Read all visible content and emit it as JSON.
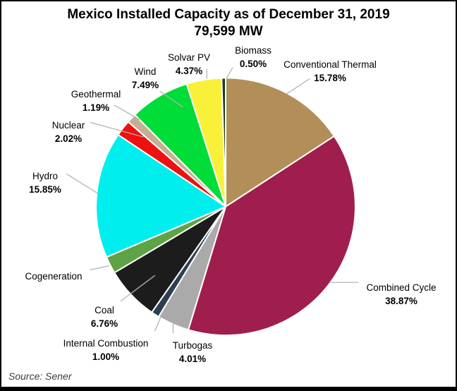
{
  "title": {
    "line1": "Mexico Installed Capacity as of December 31, 2019",
    "line2": "79,599 MW"
  },
  "source": "Source: Sener",
  "chart_data": {
    "type": "pie",
    "title": "Mexico Installed Capacity as of December 31, 2019",
    "subtitle": "79,599 MW",
    "total_mw": "79,599",
    "start_angle_deg": 0,
    "direction": "clockwise",
    "legend_position": "outside-labels-with-leader-lines",
    "slices": [
      {
        "label": "Conventional Thermal",
        "pct_label": "15.78%",
        "value": 15.78,
        "color": "#B28F58"
      },
      {
        "label": "Combined Cycle",
        "pct_label": "38.87%",
        "value": 38.87,
        "color": "#A01E4D"
      },
      {
        "label": "Turbogas",
        "pct_label": "4.01%",
        "value": 4.01,
        "color": "#AAAAAA"
      },
      {
        "label": "Internal Combustion",
        "pct_label": "1.00%",
        "value": 1.0,
        "color": "#2C3E52"
      },
      {
        "label": "Coal",
        "pct_label": "6.76%",
        "value": 6.76,
        "color": "#1C1C1C"
      },
      {
        "label": "Cogeneration",
        "pct_label": "",
        "value": 2.16,
        "color": "#5EA345"
      },
      {
        "label": "Hydro",
        "pct_label": "15.85%",
        "value": 15.85,
        "color": "#00EEEE"
      },
      {
        "label": "Nuclear",
        "pct_label": "2.02%",
        "value": 2.02,
        "color": "#ED1111"
      },
      {
        "label": "Geothermal",
        "pct_label": "1.19%",
        "value": 1.19,
        "color": "#C4B091"
      },
      {
        "label": "Wind",
        "pct_label": "7.49%",
        "value": 7.49,
        "color": "#00DC38"
      },
      {
        "label": "Solvar PV",
        "pct_label": "4.37%",
        "value": 4.37,
        "color": "#F9F139"
      },
      {
        "label": "Biomass",
        "pct_label": "0.50%",
        "value": 0.5,
        "color": "#1D3E1F"
      }
    ]
  }
}
